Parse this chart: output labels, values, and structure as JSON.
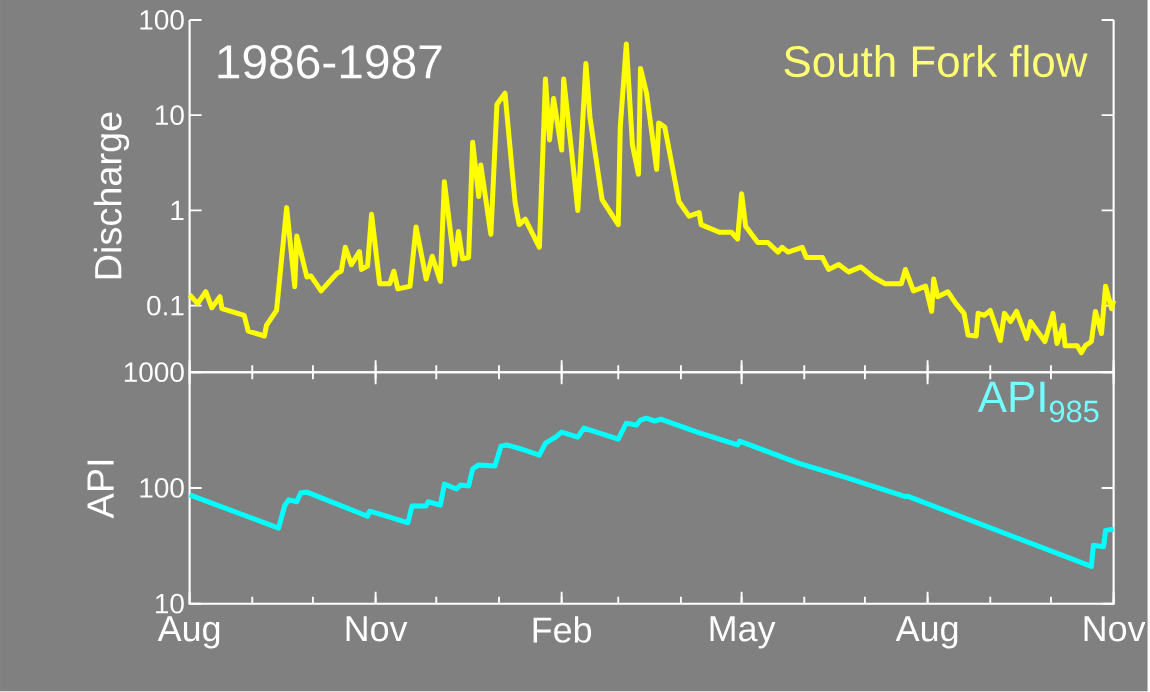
{
  "chart_data": [
    {
      "type": "line",
      "ylabel": "Discharge",
      "annotations": [
        "1986-1987"
      ],
      "log": true,
      "tick_labels": "y",
      "xlim": [
        "1986-08-01",
        "1987-11-01"
      ],
      "xticks": [
        {
          "value": "1986-08-01",
          "label": null
        },
        {
          "value": "1986-11-01",
          "label": null
        },
        {
          "value": "1987-02-01",
          "label": null
        },
        {
          "value": "1987-05-01",
          "label": null
        },
        {
          "value": "1987-08-01",
          "label": null
        },
        {
          "value": "1987-11-01",
          "label": null
        }
      ],
      "ylim": [
        0.02,
        100
      ],
      "yticks": [
        0.1,
        1,
        10,
        100
      ],
      "x": [
        "1986-08-01",
        "1986-08-05",
        "1986-08-09",
        "1986-08-12",
        "1986-08-16",
        "1986-08-17",
        "1986-08-28",
        "1986-08-30",
        "1986-09-07",
        "1986-09-08",
        "1986-09-13",
        "1986-09-18",
        "1986-09-22",
        "1986-09-23",
        "1986-09-28",
        "1986-09-30",
        "1986-10-05",
        "1986-10-13",
        "1986-10-15",
        "1986-10-17",
        "1986-10-20",
        "1986-10-24",
        "1986-10-25",
        "1986-10-28",
        "1986-10-30",
        "1986-11-03",
        "1986-11-08",
        "1986-11-10",
        "1986-11-12",
        "1986-11-18",
        "1986-11-21",
        "1986-11-26",
        "1986-11-29",
        "1986-12-03",
        "1986-12-05",
        "1986-12-10",
        "1986-12-12",
        "1986-12-14",
        "1986-12-17",
        "1986-12-19",
        "1986-12-22",
        "1986-12-23",
        "1986-12-28",
        "1986-12-31",
        "1987-01-04",
        "1987-01-09",
        "1987-01-11",
        "1987-01-14",
        "1987-01-21",
        "1987-01-24",
        "1987-01-26",
        "1987-01-28",
        "1987-02-01",
        "1987-02-02",
        "1987-02-06",
        "1987-02-09",
        "1987-02-13",
        "1987-02-15",
        "1987-02-21",
        "1987-03-01",
        "1987-03-02",
        "1987-03-05",
        "1987-03-08",
        "1987-03-11",
        "1987-03-12",
        "1987-03-15",
        "1987-03-20",
        "1987-03-21",
        "1987-03-24",
        "1987-03-31",
        "1987-04-05",
        "1987-04-10",
        "1987-04-11",
        "1987-04-20",
        "1987-04-26",
        "1987-04-29",
        "1987-05-01",
        "1987-05-03",
        "1987-05-09",
        "1987-05-14",
        "1987-05-19",
        "1987-05-21",
        "1987-05-24",
        "1987-05-31",
        "1987-06-02",
        "1987-06-10",
        "1987-06-13",
        "1987-06-18",
        "1987-06-23",
        "1987-06-29",
        "1987-07-05",
        "1987-07-11",
        "1987-07-19",
        "1987-07-21",
        "1987-07-25",
        "1987-07-31",
        "1987-08-03",
        "1987-08-04",
        "1987-08-06",
        "1987-08-11",
        "1987-08-15",
        "1987-08-19",
        "1987-08-21",
        "1987-08-25",
        "1987-08-26",
        "1987-08-29",
        "1987-09-01",
        "1987-09-06",
        "1987-09-08",
        "1987-09-11",
        "1987-09-14",
        "1987-09-19",
        "1987-09-21",
        "1987-09-24",
        "1987-09-28",
        "1987-10-02",
        "1987-10-04",
        "1987-10-07",
        "1987-10-08",
        "1987-10-14",
        "1987-10-16",
        "1987-10-18",
        "1987-10-21",
        "1987-10-23",
        "1987-10-26",
        "1987-10-28",
        "1987-10-31",
        "1987-11-01"
      ],
      "series": [
        {
          "name": "South Fork flow",
          "color": "#ffff00",
          "values": [
            0.13,
            0.105,
            0.14,
            0.095,
            0.124,
            0.093,
            0.079,
            0.054,
            0.048,
            0.062,
            0.089,
            1.07,
            0.158,
            0.54,
            0.2,
            0.205,
            0.143,
            0.22,
            0.23,
            0.41,
            0.27,
            0.37,
            0.24,
            0.26,
            0.91,
            0.17,
            0.17,
            0.23,
            0.15,
            0.16,
            0.67,
            0.19,
            0.33,
            0.18,
            2.0,
            0.27,
            0.6,
            0.31,
            0.32,
            5.2,
            1.4,
            3.0,
            0.56,
            13,
            17,
            1.2,
            0.71,
            0.81,
            0.41,
            24,
            5.5,
            15,
            4.3,
            24,
            4.0,
            1.0,
            35,
            9.5,
            1.3,
            0.71,
            7.5,
            56,
            4.9,
            2.4,
            31,
            17,
            2.7,
            8.3,
            7.5,
            1.24,
            0.87,
            0.95,
            0.71,
            0.59,
            0.59,
            0.5,
            1.5,
            0.68,
            0.46,
            0.46,
            0.365,
            0.41,
            0.365,
            0.41,
            0.32,
            0.32,
            0.24,
            0.27,
            0.226,
            0.255,
            0.2,
            0.17,
            0.17,
            0.24,
            0.143,
            0.16,
            0.087,
            0.19,
            0.124,
            0.14,
            0.105,
            0.083,
            0.049,
            0.048,
            0.083,
            0.079,
            0.089,
            0.043,
            0.083,
            0.068,
            0.087,
            0.045,
            0.068,
            0.055,
            0.042,
            0.083,
            0.04,
            0.062,
            0.038,
            0.038,
            0.032,
            0.038,
            0.042,
            0.087,
            0.051,
            0.16,
            0.093,
            0.113
          ]
        }
      ]
    },
    {
      "type": "line",
      "ylabel": "API",
      "log": true,
      "xlim": [
        "1986-08-01",
        "1987-11-01"
      ],
      "xticks": [
        {
          "value": "1986-08-01",
          "label": "Aug"
        },
        {
          "value": "1986-11-01",
          "label": "Nov"
        },
        {
          "value": "1987-02-01",
          "label": "Feb"
        },
        {
          "value": "1987-05-01",
          "label": "May"
        },
        {
          "value": "1987-08-01",
          "label": "Aug"
        },
        {
          "value": "1987-11-01",
          "label": "Nov"
        }
      ],
      "ylim": [
        10,
        1000
      ],
      "yticks": [
        10,
        100,
        1000
      ],
      "x": [
        "1986-08-01",
        "1986-09-14",
        "1986-09-17",
        "1986-09-19",
        "1986-09-23",
        "1986-09-25",
        "1986-09-28",
        "1986-10-28",
        "1986-10-29",
        "1986-11-08",
        "1986-11-17",
        "1986-11-19",
        "1986-11-26",
        "1986-11-27",
        "1986-12-03",
        "1986-12-05",
        "1986-12-11",
        "1986-12-13",
        "1986-12-17",
        "1986-12-19",
        "1986-12-22",
        "1986-12-30",
        "1987-01-02",
        "1987-01-05",
        "1987-01-12",
        "1987-01-21",
        "1987-01-24",
        "1987-01-29",
        "1987-02-01",
        "1987-02-09",
        "1987-02-12",
        "1987-03-01",
        "1987-03-05",
        "1987-03-10",
        "1987-03-12",
        "1987-03-15",
        "1987-03-19",
        "1987-03-22",
        "1987-04-09",
        "1987-04-29",
        "1987-04-30",
        "1987-05-29",
        "1987-06-21",
        "1987-07-21",
        "1987-07-22",
        "1987-10-21",
        "1987-10-22",
        "1987-10-27",
        "1987-10-28",
        "1987-11-01"
      ],
      "series": [
        {
          "name": "API$_{985}$",
          "color": "#00ffff",
          "values": [
            87,
            45,
            70,
            79,
            76,
            91,
            92,
            57,
            63,
            56,
            50,
            70,
            70,
            76,
            71,
            108,
            98,
            106,
            104,
            146,
            158,
            155,
            230,
            235,
            217,
            192,
            244,
            275,
            304,
            275,
            329,
            264,
            363,
            349,
            386,
            401,
            378,
            393,
            304,
            235,
            254,
            164,
            124,
            84,
            85,
            21,
            32,
            31,
            43,
            44
          ]
        }
      ]
    }
  ]
}
